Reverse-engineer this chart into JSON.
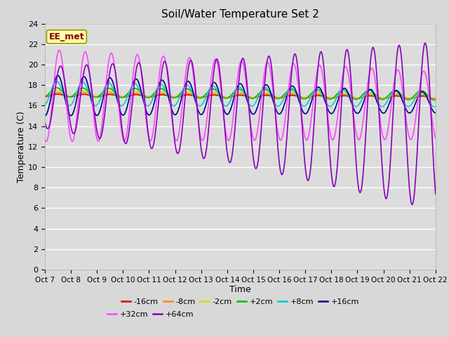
{
  "title": "Soil/Water Temperature Set 2",
  "xlabel": "Time",
  "ylabel": "Temperature (C)",
  "ylim": [
    0,
    24
  ],
  "xlim": [
    0,
    15
  ],
  "fig_bgcolor": "#d8d8d8",
  "plot_bgcolor": "#dcdcdc",
  "annotation_text": "EE_met",
  "annotation_facecolor": "#ffffaa",
  "annotation_edgecolor": "#999900",
  "annotation_textcolor": "#880000",
  "xtick_labels": [
    "Oct 7",
    "Oct 8",
    "Oct 9",
    "Oct 10",
    "Oct 11",
    "Oct 12",
    "Oct 13",
    "Oct 14",
    "Oct 15",
    "Oct 16",
    "Oct 17",
    "Oct 18",
    "Oct 19",
    "Oct 20",
    "Oct 21",
    "Oct 22"
  ],
  "series": [
    {
      "label": "-16cm",
      "color": "#dd0000",
      "linewidth": 1.2
    },
    {
      "label": "-8cm",
      "color": "#ff8800",
      "linewidth": 1.2
    },
    {
      "label": "-2cm",
      "color": "#dddd00",
      "linewidth": 1.2
    },
    {
      "label": "+2cm",
      "color": "#00bb00",
      "linewidth": 1.2
    },
    {
      "label": "+8cm",
      "color": "#00cccc",
      "linewidth": 1.2
    },
    {
      "label": "+16cm",
      "color": "#000088",
      "linewidth": 1.2
    },
    {
      "label": "+32cm",
      "color": "#ff44ff",
      "linewidth": 1.2
    },
    {
      "label": "+64cm",
      "color": "#8800bb",
      "linewidth": 1.2
    }
  ]
}
